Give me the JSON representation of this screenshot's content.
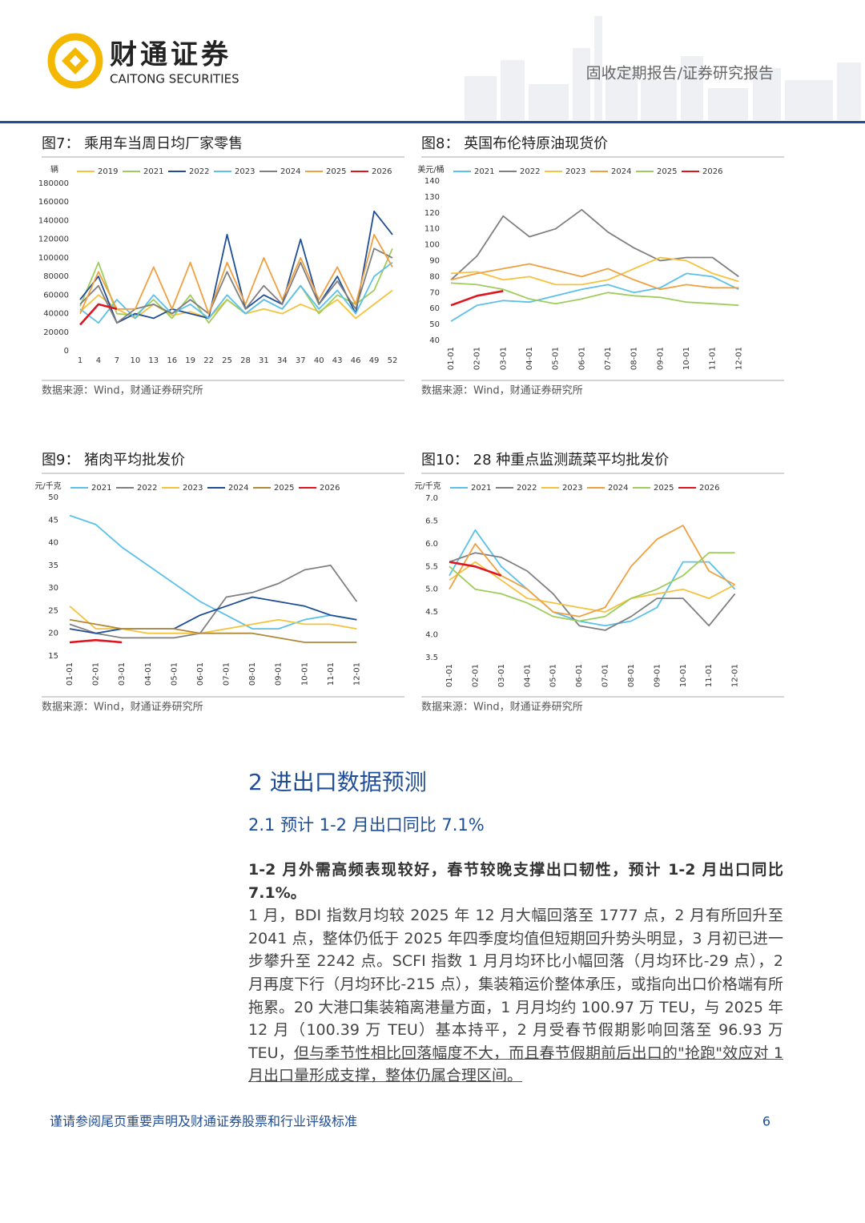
{
  "header": {
    "brand": "财通证券",
    "brand_en": "CAITONG SECURITIES",
    "report_type": "固收定期报告/证券研究报告"
  },
  "chart_data": [
    {
      "type": "line",
      "title": "图7：  乘用车当周日均厂家零售",
      "y_unit": "辆",
      "source": "数据来源：Wind，财通证券研究所",
      "x": [
        1,
        4,
        7,
        10,
        13,
        16,
        19,
        22,
        25,
        28,
        31,
        34,
        37,
        40,
        43,
        46,
        49,
        52
      ],
      "xlim": [
        1,
        52
      ],
      "xticks": [
        1,
        4,
        7,
        10,
        13,
        16,
        19,
        22,
        25,
        28,
        31,
        34,
        37,
        40,
        43,
        46,
        49,
        52
      ],
      "ylim": [
        0,
        180000
      ],
      "yticks": [
        0,
        20000,
        40000,
        60000,
        80000,
        100000,
        120000,
        140000,
        160000,
        180000
      ],
      "series": [
        {
          "name": "2019",
          "color": "#f6c23e",
          "values": [
            42000,
            60000,
            45000,
            35000,
            50000,
            38000,
            42000,
            35000,
            55000,
            40000,
            45000,
            40000,
            50000,
            42000,
            55000,
            35000,
            50000,
            65000
          ]
        },
        {
          "name": "2021",
          "color": "#9fcd5c",
          "values": [
            48000,
            95000,
            40000,
            38000,
            55000,
            35000,
            60000,
            30000,
            55000,
            40000,
            55000,
            45000,
            70000,
            40000,
            60000,
            50000,
            65000,
            110000
          ]
        },
        {
          "name": "2022",
          "color": "#1f4e96",
          "values": [
            55000,
            80000,
            30000,
            40000,
            35000,
            45000,
            40000,
            35000,
            125000,
            45000,
            60000,
            50000,
            120000,
            50000,
            80000,
            40000,
            150000,
            125000
          ]
        },
        {
          "name": "2023",
          "color": "#5bc0ea",
          "values": [
            45000,
            30000,
            55000,
            35000,
            60000,
            40000,
            50000,
            35000,
            60000,
            40000,
            55000,
            45000,
            70000,
            45000,
            65000,
            40000,
            80000,
            95000
          ]
        },
        {
          "name": "2024",
          "color": "#7f7f7f",
          "values": [
            50000,
            70000,
            30000,
            45000,
            50000,
            40000,
            55000,
            40000,
            85000,
            45000,
            70000,
            50000,
            95000,
            50000,
            75000,
            45000,
            110000,
            100000
          ]
        },
        {
          "name": "2025",
          "color": "#f0a040",
          "values": [
            40000,
            85000,
            45000,
            45000,
            90000,
            45000,
            95000,
            40000,
            95000,
            50000,
            100000,
            55000,
            100000,
            55000,
            90000,
            50000,
            125000,
            90000
          ]
        },
        {
          "name": "2026",
          "color": "#e0141e",
          "values": [
            28000,
            50000,
            45000,
            null,
            null,
            null,
            null,
            null,
            null,
            null,
            null,
            null,
            null,
            null,
            null,
            null,
            null,
            null
          ]
        }
      ]
    },
    {
      "type": "line",
      "title": "图8：  英国布伦特原油现货价",
      "y_unit": "美元/桶",
      "source": "数据来源：Wind，财通证券研究所",
      "categories": [
        "01-01",
        "02-01",
        "03-01",
        "04-01",
        "05-01",
        "06-01",
        "07-01",
        "08-01",
        "09-01",
        "10-01",
        "11-01",
        "12-01"
      ],
      "ylim": [
        40,
        140
      ],
      "yticks": [
        40,
        50,
        60,
        70,
        80,
        90,
        100,
        110,
        120,
        130,
        140
      ],
      "series": [
        {
          "name": "2021",
          "color": "#5bc0ea",
          "values": [
            52,
            62,
            65,
            64,
            68,
            72,
            75,
            70,
            73,
            82,
            80,
            72
          ]
        },
        {
          "name": "2022",
          "color": "#7f7f7f",
          "values": [
            78,
            93,
            118,
            105,
            110,
            122,
            108,
            98,
            90,
            92,
            92,
            80
          ]
        },
        {
          "name": "2023",
          "color": "#f6c23e",
          "values": [
            82,
            83,
            78,
            80,
            75,
            75,
            78,
            85,
            92,
            90,
            82,
            77
          ]
        },
        {
          "name": "2024",
          "color": "#f0a040",
          "values": [
            78,
            82,
            85,
            88,
            84,
            80,
            85,
            78,
            72,
            75,
            73,
            73
          ]
        },
        {
          "name": "2025",
          "color": "#9fcd5c",
          "values": [
            76,
            75,
            72,
            66,
            63,
            66,
            70,
            68,
            67,
            64,
            63,
            62
          ]
        },
        {
          "name": "2026",
          "color": "#e0141e",
          "values": [
            62,
            68,
            71,
            null,
            null,
            null,
            null,
            null,
            null,
            null,
            null,
            null
          ]
        }
      ]
    },
    {
      "type": "line",
      "title": "图9：  猪肉平均批发价",
      "y_unit": "元/千克",
      "source": "数据来源：Wind，财通证券研究所",
      "categories": [
        "01-01",
        "02-01",
        "03-01",
        "04-01",
        "05-01",
        "06-01",
        "07-01",
        "08-01",
        "09-01",
        "10-01",
        "11-01",
        "12-01"
      ],
      "ylim": [
        15,
        50
      ],
      "yticks": [
        15,
        20,
        25,
        30,
        35,
        40,
        45,
        50
      ],
      "series": [
        {
          "name": "2021",
          "color": "#5bc0ea",
          "values": [
            46,
            44,
            39,
            35,
            31,
            27,
            24,
            21,
            21,
            23,
            24,
            23
          ]
        },
        {
          "name": "2022",
          "color": "#7f7f7f",
          "values": [
            22,
            20,
            19,
            19,
            19,
            20,
            28,
            29,
            31,
            34,
            35,
            27
          ]
        },
        {
          "name": "2023",
          "color": "#f6c23e",
          "values": [
            26,
            21,
            21,
            20,
            20,
            20,
            21,
            22,
            23,
            22,
            22,
            21
          ]
        },
        {
          "name": "2024",
          "color": "#1f4e96",
          "values": [
            21,
            20,
            21,
            21,
            21,
            24,
            26,
            28,
            27,
            26,
            24,
            23
          ]
        },
        {
          "name": "2025",
          "color": "#b08a3a",
          "values": [
            23,
            22,
            21,
            21,
            21,
            20,
            20,
            20,
            19,
            18,
            18,
            18
          ]
        },
        {
          "name": "2026",
          "color": "#e0141e",
          "values": [
            18,
            18.5,
            18,
            null,
            null,
            null,
            null,
            null,
            null,
            null,
            null,
            null
          ]
        }
      ]
    },
    {
      "type": "line",
      "title": "图10：  28 种重点监测蔬菜平均批发价",
      "y_unit": "元/千克",
      "source": "数据来源：Wind，财通证券研究所",
      "categories": [
        "01-01",
        "02-01",
        "03-01",
        "04-01",
        "05-01",
        "06-01",
        "07-01",
        "08-01",
        "09-01",
        "10-01",
        "11-01",
        "12-01"
      ],
      "ylim": [
        3.5,
        7.0
      ],
      "yticks": [
        3.5,
        {
          "value": 4.0,
          "label": "4.0"
        },
        4.5,
        {
          "value": 5.0,
          "label": "5.0"
        },
        5.5,
        {
          "value": 6.0,
          "label": "6.0"
        },
        6.5,
        {
          "value": 7.0,
          "label": "7.0"
        }
      ],
      "series": [
        {
          "name": "2021",
          "color": "#5bc0ea",
          "values": [
            5.3,
            6.3,
            5.5,
            5.0,
            4.5,
            4.3,
            4.2,
            4.3,
            4.6,
            5.6,
            5.6,
            5.0
          ]
        },
        {
          "name": "2022",
          "color": "#7f7f7f",
          "values": [
            5.6,
            5.8,
            5.7,
            5.4,
            4.9,
            4.2,
            4.1,
            4.4,
            4.8,
            4.8,
            4.2,
            4.9
          ]
        },
        {
          "name": "2023",
          "color": "#f6c23e",
          "values": [
            5.2,
            5.6,
            5.2,
            4.8,
            4.7,
            4.6,
            4.5,
            4.8,
            4.9,
            5.0,
            4.8,
            5.1
          ]
        },
        {
          "name": "2024",
          "color": "#f0a040",
          "values": [
            5.0,
            6.0,
            5.3,
            5.0,
            4.5,
            4.4,
            4.6,
            5.5,
            6.1,
            6.4,
            5.4,
            5.1
          ]
        },
        {
          "name": "2025",
          "color": "#9fcd5c",
          "values": [
            5.5,
            5.0,
            4.9,
            4.7,
            4.4,
            4.3,
            4.4,
            4.8,
            5.0,
            5.3,
            5.8,
            5.8
          ]
        },
        {
          "name": "2026",
          "color": "#e0141e",
          "values": [
            5.6,
            5.5,
            5.3,
            null,
            null,
            null,
            null,
            null,
            null,
            null,
            null,
            null
          ]
        }
      ]
    }
  ],
  "section": {
    "heading": "2  进出口数据预测",
    "subheading": "2.1   预计 1-2 月出口同比 7.1%",
    "lead": "1-2 月外需高频表现较好，春节较晚支撑出口韧性，预计 1-2 月出口同比 7.1%。",
    "body": "1 月，BDI 指数月均较 2025 年 12 月大幅回落至 1777 点，2 月有所回升至 2041 点，整体仍低于 2025 年四季度均值但短期回升势头明显，3 月初已进一步攀升至 2242 点。SCFI 指数 1 月月均环比小幅回落（月均环比-29 点），2 月再度下行（月均环比-215 点），集装箱运价整体承压，或指向出口价格端有所拖累。20 大港口集装箱离港量方面，1 月月均约 100.97 万 TEU，与 2025 年 12 月（100.39 万 TEU）基本持平，2 月受春节假期影响回落至 96.93 万 TEU，",
    "underlined": "但与季节性相比回落幅度不大，而且春节假期前后出口的\"抢跑\"效应对 1 月出口量形成支撑，整体仍属合理区间。"
  },
  "footer": {
    "disclaimer": "谨请参阅尾页重要声明及财通证券股票和行业评级标准",
    "page": 6
  }
}
